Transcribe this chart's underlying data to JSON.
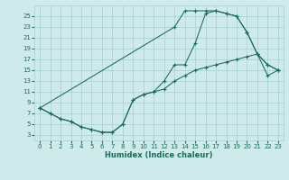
{
  "title": "",
  "xlabel": "Humidex (Indice chaleur)",
  "ylabel": "",
  "bg_color": "#ceeaea",
  "grid_color": "#a8d0d0",
  "line_color": "#1a6b5a",
  "marker": "+",
  "xlim": [
    -0.5,
    23.5
  ],
  "ylim": [
    2,
    27
  ],
  "xticks": [
    0,
    1,
    2,
    3,
    4,
    5,
    6,
    7,
    8,
    9,
    10,
    11,
    12,
    13,
    14,
    15,
    16,
    17,
    18,
    19,
    20,
    21,
    22,
    23
  ],
  "yticks": [
    3,
    5,
    7,
    9,
    11,
    13,
    15,
    17,
    19,
    21,
    23,
    25
  ],
  "line1_x": [
    0,
    1,
    2,
    3,
    4,
    5,
    6,
    7,
    8,
    9,
    10,
    11,
    12,
    13,
    14,
    15,
    16,
    17,
    18,
    19,
    20,
    21,
    22,
    23
  ],
  "line1_y": [
    8,
    7,
    6,
    5.5,
    4.5,
    4,
    3.5,
    3.5,
    5,
    9.5,
    10.5,
    11,
    11.5,
    13,
    14,
    15,
    15.5,
    16,
    16.5,
    17,
    17.5,
    18,
    14,
    15
  ],
  "line2_x": [
    0,
    1,
    2,
    3,
    4,
    5,
    6,
    7,
    8,
    9,
    10,
    11,
    12,
    13,
    14,
    15,
    16,
    17,
    18,
    19,
    20,
    21,
    22,
    23
  ],
  "line2_y": [
    8,
    7,
    6,
    5.5,
    4.5,
    4,
    3.5,
    3.5,
    5,
    9.5,
    10.5,
    11,
    13,
    16,
    16,
    20,
    25.5,
    26,
    25.5,
    25,
    22,
    18,
    16,
    15
  ],
  "line3_x": [
    0,
    13,
    14,
    15,
    16,
    17,
    18,
    19,
    20,
    21,
    22,
    23
  ],
  "line3_y": [
    8,
    23,
    26,
    26,
    26,
    26,
    25.5,
    25,
    22,
    18,
    16,
    15
  ]
}
